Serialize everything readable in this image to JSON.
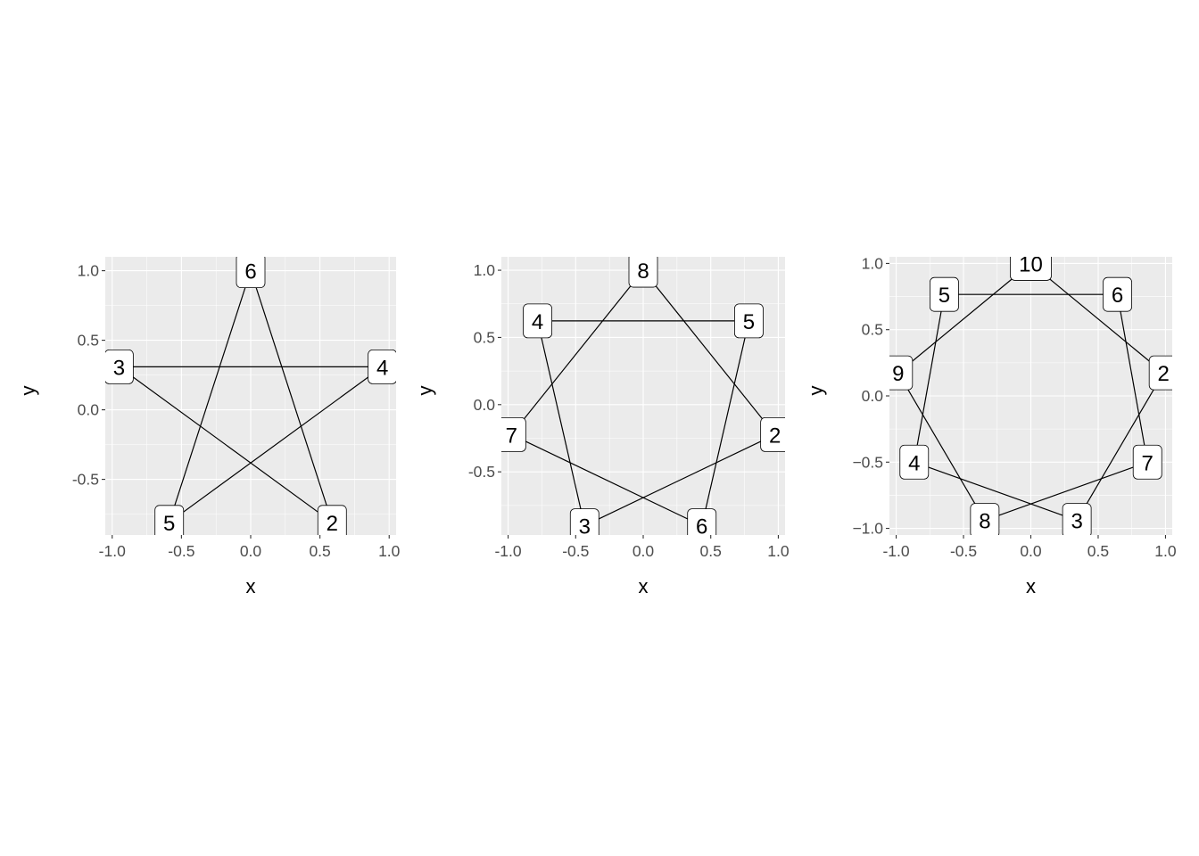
{
  "chart_data": [
    {
      "type": "scatter",
      "title": "",
      "xlabel": "x",
      "ylabel": "y",
      "xlim": [
        -1.05,
        1.05
      ],
      "ylim": [
        -0.9,
        1.1
      ],
      "xticks": [
        -1.0,
        -0.5,
        0.0,
        0.5,
        1.0
      ],
      "xtick_labels": [
        "-1.0",
        "-0.5",
        "0.0",
        "0.5",
        "1.0"
      ],
      "yticks": [
        -0.5,
        0.0,
        0.5,
        1.0
      ],
      "ytick_labels": [
        "-0.5",
        "0.0",
        "0.5",
        "1.0"
      ],
      "grid": true,
      "legend": "none",
      "nodes": [
        {
          "label": "2",
          "x": 0.588,
          "y": -0.809
        },
        {
          "label": "3",
          "x": -0.951,
          "y": 0.309
        },
        {
          "label": "4",
          "x": 0.951,
          "y": 0.309
        },
        {
          "label": "5",
          "x": -0.588,
          "y": -0.809
        },
        {
          "label": "6",
          "x": 0.0,
          "y": 1.0
        }
      ],
      "edges": [
        [
          "3",
          "4"
        ],
        [
          "4",
          "5"
        ],
        [
          "5",
          "6"
        ],
        [
          "6",
          "2"
        ],
        [
          "2",
          "3"
        ]
      ]
    },
    {
      "type": "scatter",
      "title": "",
      "xlabel": "x",
      "ylabel": "y",
      "xlim": [
        -1.05,
        1.05
      ],
      "ylim": [
        -0.97,
        1.1
      ],
      "xticks": [
        -1.0,
        -0.5,
        0.0,
        0.5,
        1.0
      ],
      "xtick_labels": [
        "-1.0",
        "-0.5",
        "0.0",
        "0.5",
        "1.0"
      ],
      "yticks": [
        -0.5,
        0.0,
        0.5,
        1.0
      ],
      "ytick_labels": [
        "-0.5",
        "0.0",
        "0.5",
        "1.0"
      ],
      "grid": true,
      "legend": "none",
      "nodes": [
        {
          "label": "2",
          "x": 0.975,
          "y": -0.223
        },
        {
          "label": "3",
          "x": -0.434,
          "y": -0.901
        },
        {
          "label": "4",
          "x": -0.782,
          "y": 0.623
        },
        {
          "label": "5",
          "x": 0.782,
          "y": 0.623
        },
        {
          "label": "6",
          "x": 0.434,
          "y": -0.901
        },
        {
          "label": "7",
          "x": -0.975,
          "y": -0.223
        },
        {
          "label": "8",
          "x": 0.0,
          "y": 1.0
        }
      ],
      "edges": [
        [
          "4",
          "5"
        ],
        [
          "5",
          "6"
        ],
        [
          "6",
          "7"
        ],
        [
          "7",
          "8"
        ],
        [
          "8",
          "2"
        ],
        [
          "2",
          "3"
        ],
        [
          "3",
          "4"
        ]
      ]
    },
    {
      "type": "scatter",
      "title": "",
      "xlabel": "x",
      "ylabel": "y",
      "xlim": [
        -1.05,
        1.05
      ],
      "ylim": [
        -1.05,
        1.05
      ],
      "xticks": [
        -1.0,
        -0.5,
        0.0,
        0.5,
        1.0
      ],
      "xtick_labels": [
        "-1.0",
        "-0.5",
        "0.0",
        "0.5",
        "1.0"
      ],
      "yticks": [
        -1.0,
        -0.5,
        0.0,
        0.5,
        1.0
      ],
      "ytick_labels": [
        "−1.0",
        "−0.5",
        "0.0",
        "0.5",
        "1.0"
      ],
      "grid": true,
      "legend": "none",
      "nodes": [
        {
          "label": "2",
          "x": 0.985,
          "y": 0.174
        },
        {
          "label": "3",
          "x": 0.342,
          "y": -0.94
        },
        {
          "label": "4",
          "x": -0.866,
          "y": -0.5
        },
        {
          "label": "5",
          "x": -0.643,
          "y": 0.766
        },
        {
          "label": "6",
          "x": 0.643,
          "y": 0.766
        },
        {
          "label": "7",
          "x": 0.866,
          "y": -0.5
        },
        {
          "label": "8",
          "x": -0.342,
          "y": -0.94
        },
        {
          "label": "9",
          "x": -0.985,
          "y": 0.174
        },
        {
          "label": "10",
          "x": 0.0,
          "y": 1.0
        }
      ],
      "edges": [
        [
          "5",
          "6"
        ],
        [
          "6",
          "7"
        ],
        [
          "7",
          "8"
        ],
        [
          "8",
          "9"
        ],
        [
          "9",
          "10"
        ],
        [
          "10",
          "2"
        ],
        [
          "2",
          "3"
        ],
        [
          "3",
          "4"
        ],
        [
          "4",
          "5"
        ]
      ]
    }
  ]
}
